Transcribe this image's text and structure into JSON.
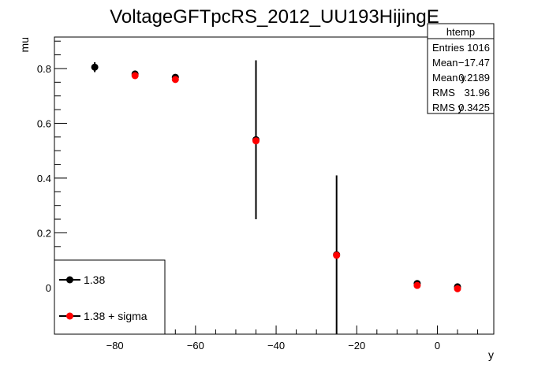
{
  "chart_data": {
    "type": "scatter",
    "title": "VoltageGFTpcRS_2012_UU193HijingE",
    "xlabel": "y",
    "ylabel": "mu",
    "xlim": [
      -95,
      14
    ],
    "ylim": [
      -0.17,
      0.915
    ],
    "x_ticks": [
      -80,
      -60,
      -40,
      -20,
      0
    ],
    "y_ticks": [
      0,
      0.2,
      0.4,
      0.6,
      0.8
    ],
    "x_tick_labels": [
      "−80",
      "−60",
      "−40",
      "−20",
      "0"
    ],
    "y_tick_labels": [
      "0",
      "0.2",
      "0.4",
      "0.6",
      "0.8"
    ],
    "grid": false,
    "legend_position": "bottom-left",
    "series": [
      {
        "name": "1.38",
        "color": "#000000",
        "x": [
          -85,
          -75,
          -65,
          -45,
          -25,
          -5,
          5
        ],
        "y": [
          0.805,
          0.78,
          0.768,
          0.54,
          0.12,
          0.015,
          0.003
        ],
        "yerr": [
          0.018,
          0.01,
          0.008,
          0.29,
          0.29,
          0.01,
          0.008
        ]
      },
      {
        "name": "1.38 + sigma",
        "color": "#ff0000",
        "x": [
          -75,
          -65,
          -45,
          -25,
          -5,
          5
        ],
        "y": [
          0.774,
          0.76,
          0.536,
          0.118,
          0.008,
          -0.004
        ],
        "yerr": [
          0,
          0,
          0,
          0,
          0,
          0
        ]
      }
    ],
    "stats_box": {
      "title": "htemp",
      "rows": [
        {
          "label": "Entries",
          "value": "1016"
        },
        {
          "label": "Mean",
          "value": "−17.47"
        },
        {
          "label": "Mean y",
          "value": "0.2189"
        },
        {
          "label": "RMS",
          "value": "31.96"
        },
        {
          "label": "RMS y",
          "value": "0.3425"
        }
      ]
    }
  }
}
